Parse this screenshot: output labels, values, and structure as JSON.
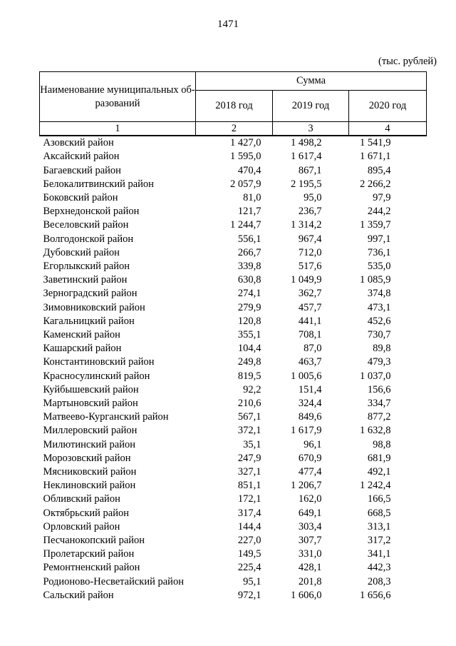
{
  "page": {
    "number": "1471",
    "units_label": "(тыс. рублей)"
  },
  "table": {
    "name_header_line1": "Наименование муниципальных об-",
    "name_header_line2": "разований",
    "sum_header": "Сумма",
    "year_headers": [
      "2018 год",
      "2019 год",
      "2020 год"
    ],
    "index_row": [
      "1",
      "2",
      "3",
      "4"
    ],
    "rows": [
      {
        "name": "Азовский район",
        "y2018": "1 427,0",
        "y2019": "1 498,2",
        "y2020": "1 541,9"
      },
      {
        "name": "Аксайский район",
        "y2018": "1 595,0",
        "y2019": "1 617,4",
        "y2020": "1 671,1"
      },
      {
        "name": "Багаевский район",
        "y2018": "470,4",
        "y2019": "867,1",
        "y2020": "895,4"
      },
      {
        "name": "Белокалитвинский район",
        "y2018": "2 057,9",
        "y2019": "2 195,5",
        "y2020": "2 266,2"
      },
      {
        "name": "Боковский район",
        "y2018": "81,0",
        "y2019": "95,0",
        "y2020": "97,9"
      },
      {
        "name": "Верхнедонской район",
        "y2018": "121,7",
        "y2019": "236,7",
        "y2020": "244,2"
      },
      {
        "name": "Веселовский район",
        "y2018": "1 244,7",
        "y2019": "1 314,2",
        "y2020": "1 359,7"
      },
      {
        "name": "Волгодонской район",
        "y2018": "556,1",
        "y2019": "967,4",
        "y2020": "997,1"
      },
      {
        "name": "Дубовский район",
        "y2018": "266,7",
        "y2019": "712,0",
        "y2020": "736,1"
      },
      {
        "name": "Егорлыкский район",
        "y2018": "339,8",
        "y2019": "517,6",
        "y2020": "535,0"
      },
      {
        "name": "Заветинский район",
        "y2018": "630,8",
        "y2019": "1 049,9",
        "y2020": "1 085,9"
      },
      {
        "name": "Зерноградский район",
        "y2018": "274,1",
        "y2019": "362,7",
        "y2020": "374,8"
      },
      {
        "name": "Зимовниковский район",
        "y2018": "279,9",
        "y2019": "457,7",
        "y2020": "473,1"
      },
      {
        "name": "Кагальницкий район",
        "y2018": "120,8",
        "y2019": "441,1",
        "y2020": "452,6"
      },
      {
        "name": "Каменский район",
        "y2018": "355,1",
        "y2019": "708,1",
        "y2020": "730,7"
      },
      {
        "name": "Кашарский район",
        "y2018": "104,4",
        "y2019": "87,0",
        "y2020": "89,8"
      },
      {
        "name": "Константиновский район",
        "y2018": "249,8",
        "y2019": "463,7",
        "y2020": "479,3"
      },
      {
        "name": "Красносулинский район",
        "y2018": "819,5",
        "y2019": "1 005,6",
        "y2020": "1 037,0"
      },
      {
        "name": "Куйбышевский район",
        "y2018": "92,2",
        "y2019": "151,4",
        "y2020": "156,6"
      },
      {
        "name": "Мартыновский район",
        "y2018": "210,6",
        "y2019": "324,4",
        "y2020": "334,7"
      },
      {
        "name": "Матвеево-Курганский район",
        "y2018": "567,1",
        "y2019": "849,6",
        "y2020": "877,2"
      },
      {
        "name": "Миллеровский район",
        "y2018": "372,1",
        "y2019": "1 617,9",
        "y2020": "1 632,8"
      },
      {
        "name": "Милютинский район",
        "y2018": "35,1",
        "y2019": "96,1",
        "y2020": "98,8"
      },
      {
        "name": "Морозовский район",
        "y2018": "247,9",
        "y2019": "670,9",
        "y2020": "681,9"
      },
      {
        "name": "Мясниковский район",
        "y2018": "327,1",
        "y2019": "477,4",
        "y2020": "492,1"
      },
      {
        "name": "Неклиновский район",
        "y2018": "851,1",
        "y2019": "1 206,7",
        "y2020": "1 242,4"
      },
      {
        "name": "Обливский район",
        "y2018": "172,1",
        "y2019": "162,0",
        "y2020": "166,5"
      },
      {
        "name": "Октябрьский район",
        "y2018": "317,4",
        "y2019": "649,1",
        "y2020": "668,5"
      },
      {
        "name": "Орловский район",
        "y2018": "144,4",
        "y2019": "303,4",
        "y2020": "313,1"
      },
      {
        "name": "Песчанокопский район",
        "y2018": "227,0",
        "y2019": "307,7",
        "y2020": "317,2"
      },
      {
        "name": "Пролетарский район",
        "y2018": "149,5",
        "y2019": "331,0",
        "y2020": "341,1"
      },
      {
        "name": "Ремонтненский район",
        "y2018": "225,4",
        "y2019": "428,1",
        "y2020": "442,3"
      },
      {
        "name": "Родионово-Несветайский район",
        "y2018": "95,1",
        "y2019": "201,8",
        "y2020": "208,3"
      },
      {
        "name": "Сальский район",
        "y2018": "972,1",
        "y2019": "1 606,0",
        "y2020": "1 656,6"
      }
    ]
  }
}
